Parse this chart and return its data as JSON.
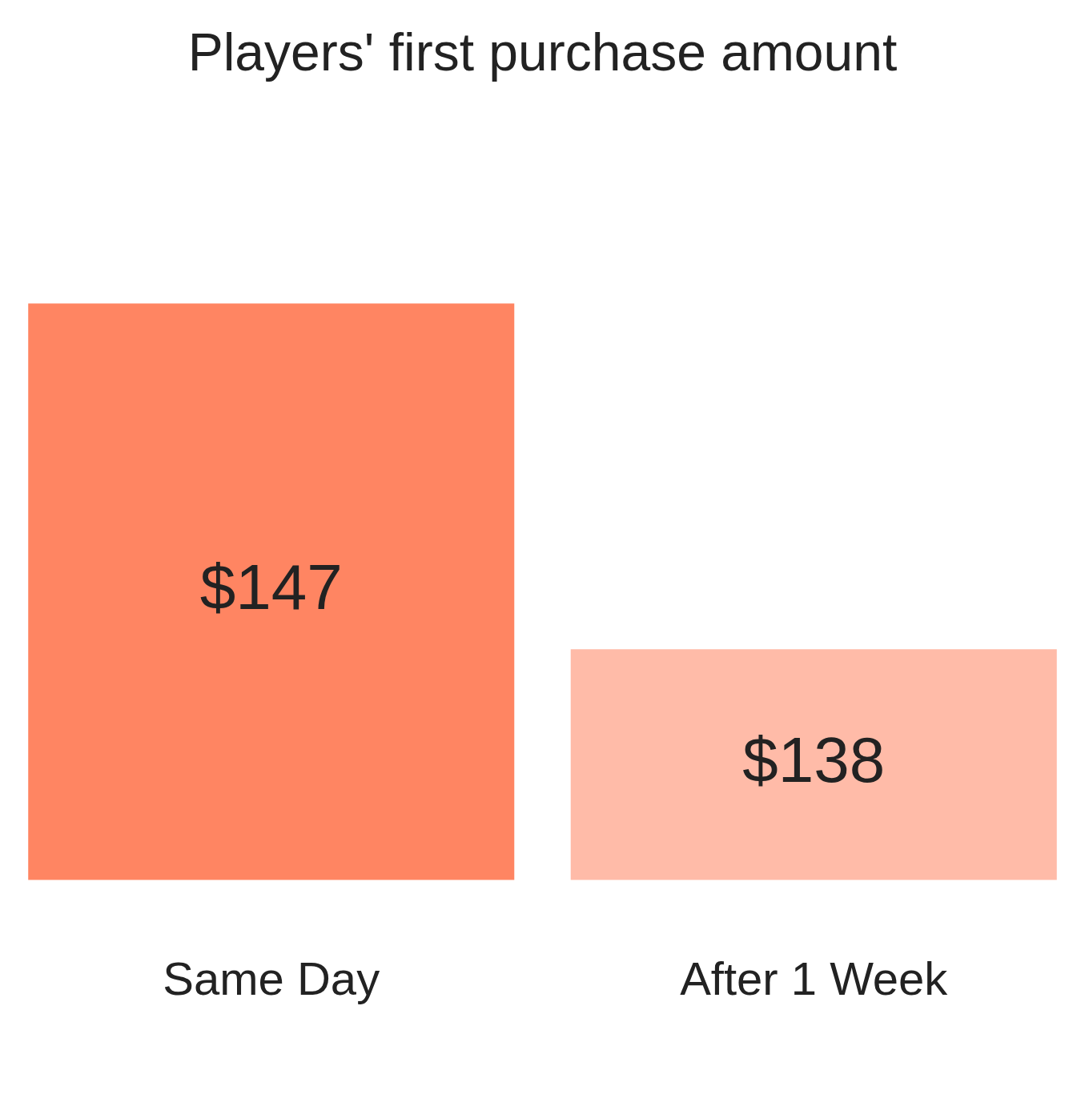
{
  "chart_data": {
    "type": "bar",
    "title": "Players' first purchase amount",
    "categories": [
      "Same Day",
      "After 1 Week"
    ],
    "values": [
      147,
      138
    ],
    "colors": [
      "#ff8562",
      "#ffbba8"
    ],
    "value_labels": [
      "$147",
      "$138"
    ],
    "tick_labels": "x",
    "grid": false,
    "legend": false
  }
}
